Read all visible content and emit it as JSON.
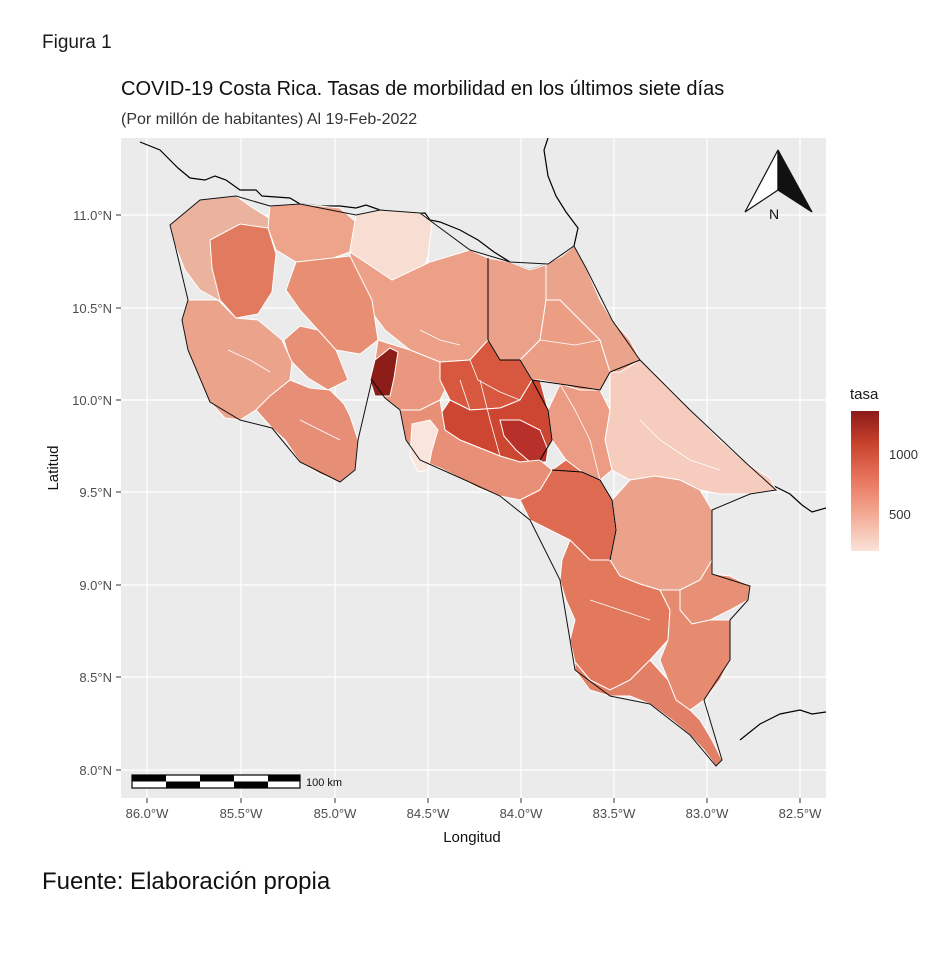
{
  "figure_label": "Figura  1",
  "title": "COVID-19 Costa Rica. Tasas de morbilidad en los últimos siete días",
  "subtitle": "(Por millón de habitantes) Al 19-Feb-2022",
  "source": "Fuente: Elaboración propia",
  "map": {
    "x_label": "Longitud",
    "y_label": "Latitud",
    "x_ticks": [
      "86.0°W",
      "85.5°W",
      "85.0°W",
      "84.5°W",
      "84.0°W",
      "83.5°W",
      "83.0°W",
      "82.5°W"
    ],
    "y_ticks": [
      "11.0°N",
      "10.5°N",
      "10.0°N",
      "9.5°N",
      "9.0°N",
      "8.5°N",
      "8.0°N"
    ],
    "north_label": "N",
    "scale_label": "100 km",
    "background_color": "#ebebeb",
    "outline_color": "#000000",
    "border_color": "#ffffff"
  },
  "legend": {
    "title": "tasa",
    "labels": [
      "1000",
      "500"
    ],
    "low_color": "#fbe3da",
    "high_color": "#8b1a1a"
  }
}
